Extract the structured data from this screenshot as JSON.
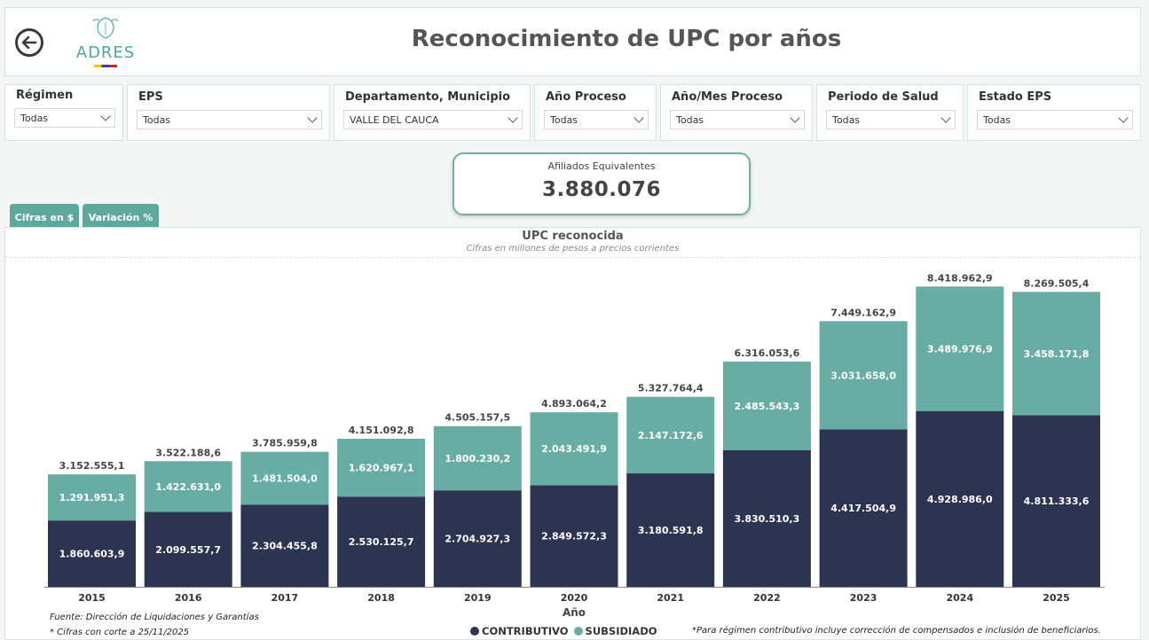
{
  "header": {
    "title": "Reconocimiento de UPC por años",
    "logo_text": "ADRES"
  },
  "filters": [
    {
      "label": "Régimen",
      "value": "Todas"
    },
    {
      "label": "EPS",
      "value": "Todas"
    },
    {
      "label": "Departamento, Municipio",
      "value": "VALLE DEL CAUCA"
    },
    {
      "label": "Año Proceso",
      "value": "Todas"
    },
    {
      "label": "Año/Mes Proceso",
      "value": "Todas"
    },
    {
      "label": "Periodo de Salud",
      "value": "Todas"
    },
    {
      "label": "Estado EPS",
      "value": "Todas"
    }
  ],
  "kpi": {
    "label": "Afiliados Equivalentes",
    "value": "3.880.076"
  },
  "tabs": {
    "cifras": "Cifras en $",
    "variacion": "Variación %"
  },
  "chart_data": {
    "type": "bar",
    "stacked": true,
    "title": "UPC reconocida",
    "subtitle": "Cifras en millones de pesos a precios corrientes",
    "xlabel": "Año",
    "categories": [
      "2015",
      "2016",
      "2017",
      "2018",
      "2019",
      "2020",
      "2021",
      "2022",
      "2023",
      "2024",
      "2025"
    ],
    "series": [
      {
        "name": "CONTRIBUTIVO",
        "color": "#2d3452",
        "values": [
          1860603.9,
          2099557.7,
          2304455.8,
          2530125.7,
          2704927.3,
          2849572.3,
          3180591.8,
          3830510.3,
          4417504.9,
          4928986.0,
          4811333.6
        ],
        "labels": [
          "1.860.603,9",
          "2.099.557,7",
          "2.304.455,8",
          "2.530.125,7",
          "2.704.927,3",
          "2.849.572,3",
          "3.180.591,8",
          "3.830.510,3",
          "4.417.504,9",
          "4.928.986,0",
          "4.811.333,6"
        ]
      },
      {
        "name": "SUBSIDIADO",
        "color": "#67ada4",
        "values": [
          1291951.3,
          1422631.0,
          1481504.0,
          1620967.1,
          1800230.2,
          2043491.9,
          2147172.6,
          2485543.3,
          3031658.0,
          3489976.9,
          3458171.8
        ],
        "labels": [
          "1.291.951,3",
          "1.422.631,0",
          "1.481.504,0",
          "1.620.967,1",
          "1.800.230,2",
          "2.043.491,9",
          "2.147.172,6",
          "2.485.543,3",
          "3.031.658,0",
          "3.489.976,9",
          "3.458.171,8"
        ]
      }
    ],
    "totals": [
      3152555.1,
      3522188.6,
      3785959.8,
      4151092.8,
      4505157.5,
      4893064.2,
      5327764.4,
      6316053.6,
      7449162.9,
      8418962.9,
      8269505.4
    ],
    "total_labels": [
      "3.152.555,1",
      "3.522.188,6",
      "3.785.959,8",
      "4.151.092,8",
      "4.505.157,5",
      "4.893.064,2",
      "5.327.764,4",
      "6.316.053,6",
      "7.449.162,9",
      "8.418.962,9",
      "8.269.505,4"
    ],
    "ylim": [
      0,
      8500000
    ],
    "grid": false,
    "legend_position": "bottom"
  },
  "footer": {
    "source": "Fuente:  Dirección de Liquidaciones y Garantías",
    "cutoff": "* Cifras con corte a 25/11/2025",
    "note": "*Para régimen contributivo incluye corrección de compensados e inclusión de beneficiarios."
  }
}
